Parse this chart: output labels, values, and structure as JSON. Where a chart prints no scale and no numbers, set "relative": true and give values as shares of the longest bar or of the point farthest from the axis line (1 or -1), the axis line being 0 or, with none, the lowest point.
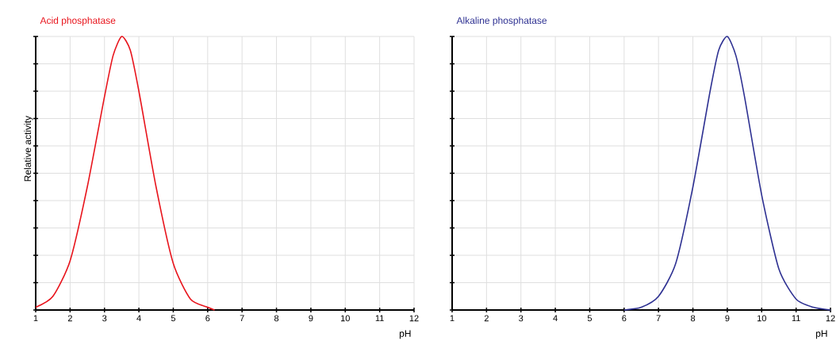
{
  "chart_data": [
    {
      "type": "line",
      "title": "Acid phosphatase",
      "xlabel": "pH",
      "ylabel": "Relative activity",
      "relative": true,
      "grid": true,
      "xlim": [
        1,
        12
      ],
      "xticks": [
        1,
        2,
        3,
        4,
        5,
        6,
        7,
        8,
        9,
        10,
        11,
        12
      ],
      "series": [
        {
          "color": "#e8141c",
          "x": [
            1.0,
            1.5,
            2.0,
            2.5,
            3.0,
            3.25,
            3.5,
            3.75,
            4.0,
            4.5,
            5.0,
            5.5,
            6.0,
            6.2
          ],
          "values": [
            0.01,
            0.05,
            0.18,
            0.45,
            0.78,
            0.93,
            1.0,
            0.95,
            0.8,
            0.45,
            0.17,
            0.04,
            0.01,
            0.0
          ]
        }
      ]
    },
    {
      "type": "line",
      "title": "Alkaline phosphatase",
      "xlabel": "pH",
      "relative": true,
      "grid": true,
      "xlim": [
        1,
        12
      ],
      "xticks": [
        1,
        2,
        3,
        4,
        5,
        6,
        7,
        8,
        9,
        10,
        11,
        12
      ],
      "series": [
        {
          "color": "#2e3192",
          "x": [
            6.0,
            6.5,
            7.0,
            7.5,
            8.0,
            8.5,
            8.75,
            9.0,
            9.25,
            9.5,
            10.0,
            10.5,
            11.0,
            11.5,
            12.0
          ],
          "values": [
            0.0,
            0.01,
            0.05,
            0.17,
            0.45,
            0.8,
            0.95,
            1.0,
            0.93,
            0.78,
            0.42,
            0.15,
            0.04,
            0.01,
            0.0
          ]
        }
      ]
    }
  ]
}
